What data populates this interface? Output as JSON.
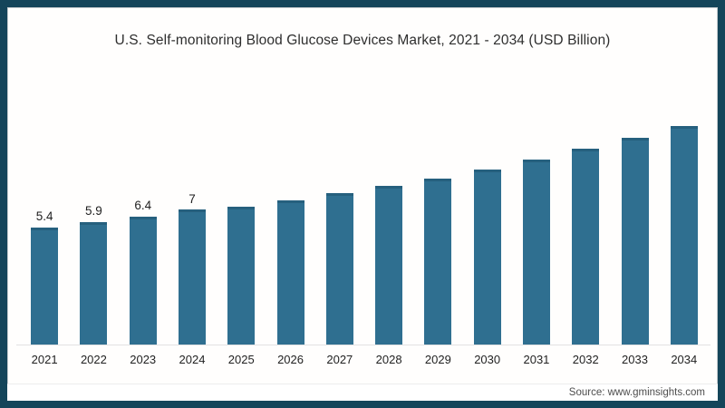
{
  "chart_data": {
    "type": "bar",
    "title": "U.S. Self-monitoring Blood Glucose Devices Market, 2021 - 2034 (USD Billion)",
    "categories": [
      "2021",
      "2022",
      "2023",
      "2024",
      "2025",
      "2026",
      "2027",
      "2028",
      "2029",
      "2030",
      "2031",
      "2032",
      "2033",
      "2034"
    ],
    "values": [
      5.4,
      5.9,
      6.4,
      7,
      7.3,
      7.9,
      8.5,
      9.2,
      9.9,
      10.7,
      11.6,
      12.6,
      13.6,
      14.7
    ],
    "data_labels": [
      "5.4",
      "5.9",
      "6.4",
      "7",
      "",
      "",
      "",
      "",
      "",
      "",
      "",
      "",
      "",
      ""
    ],
    "xlabel": "",
    "ylabel": "",
    "ylim": [
      -5.4,
      16.2
    ],
    "grid": false,
    "legend": "none",
    "bar_color": "#2f6f90",
    "bar_cap_color": "#26607e",
    "axis_line_color": "#e2e2e2",
    "frame_border_color": "#14455a"
  },
  "source": {
    "text": "Source: www.gminsights.com"
  }
}
